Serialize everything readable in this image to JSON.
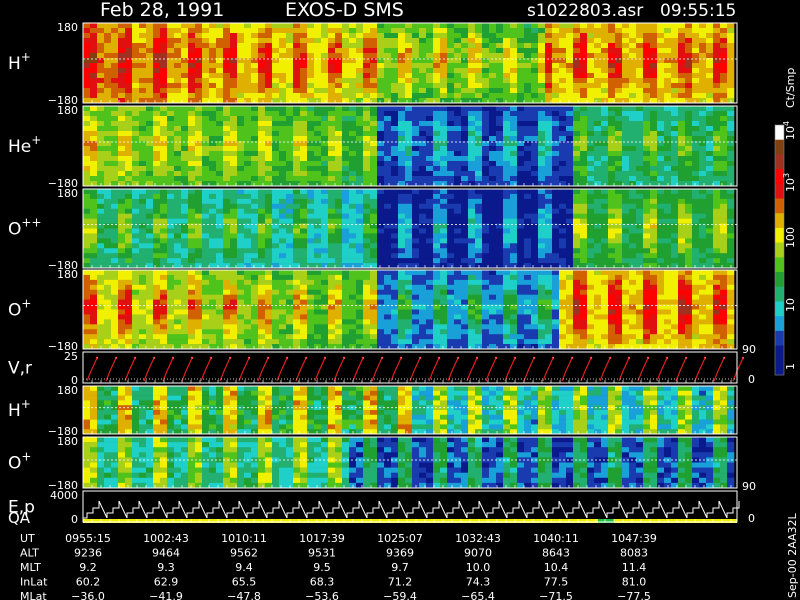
{
  "header": {
    "date": "Feb 28, 1991",
    "mission": "EXOS-D SMS",
    "file": "s1022803.asr",
    "time": "09:55:15"
  },
  "panels": [
    {
      "id": "h-plus-1",
      "label": "H",
      "sup": "+",
      "tick_top": "180",
      "tick_bottom": "−180"
    },
    {
      "id": "he-plus",
      "label": "He",
      "sup": "+",
      "tick_top": "180",
      "tick_bottom": "−180"
    },
    {
      "id": "o-plusplus",
      "label": "O",
      "sup": "++",
      "tick_top": "180",
      "tick_bottom": "−180"
    },
    {
      "id": "o-plus-1",
      "label": "O",
      "sup": "+",
      "tick_top": "180",
      "tick_bottom": "−180"
    },
    {
      "id": "vr",
      "label": "V,r",
      "sup": "",
      "tick_top": "25",
      "tick_bottom": "0"
    },
    {
      "id": "h-plus-2",
      "label": "H",
      "sup": "+",
      "tick_top": "180",
      "tick_bottom": "−180"
    },
    {
      "id": "o-plus-2",
      "label": "O",
      "sup": "+",
      "tick_top": "180",
      "tick_bottom": "−180"
    },
    {
      "id": "ep-qa",
      "label": "E,p",
      "label2": "QA",
      "sup": "",
      "tick_top": "4000",
      "tick_bottom": "0"
    }
  ],
  "right_axes": {
    "vr": {
      "top": "90",
      "bottom": "0"
    },
    "ep": {
      "top": "90",
      "bottom": "0"
    }
  },
  "colorbar": {
    "unit": "Ct/Smp",
    "labels": [
      {
        "text": "1",
        "sup": ""
      },
      {
        "text": "10",
        "sup": ""
      },
      {
        "text": "100",
        "sup": ""
      },
      {
        "text": "10",
        "sup": "3"
      },
      {
        "text": "10",
        "sup": "4"
      }
    ],
    "colors": [
      "#0a1a8c",
      "#0a1a8c",
      "#1a3bb0",
      "#19a0d8",
      "#1fd0c8",
      "#22b070",
      "#20a030",
      "#4fc21c",
      "#a8d018",
      "#f0f000",
      "#e0b000",
      "#d06000",
      "#e01010",
      "#ff0000",
      "#a03020",
      "#804010",
      "#ffffff"
    ]
  },
  "footer": {
    "rows": [
      {
        "label": "UT",
        "values": [
          "0955:15",
          "1002:43",
          "1010:11",
          "1017:39",
          "1025:07",
          "1032:43",
          "1040:11",
          "1047:39"
        ]
      },
      {
        "label": "ALT",
        "values": [
          "9236",
          "9464",
          "9562",
          "9531",
          "9369",
          "9070",
          "8643",
          "8083"
        ]
      },
      {
        "label": "MLT",
        "values": [
          "9.2",
          "9.3",
          "9.4",
          "9.5",
          "9.7",
          "10.0",
          "10.4",
          "11.4"
        ]
      },
      {
        "label": "InLat",
        "values": [
          "60.2",
          "62.9",
          "65.5",
          "68.3",
          "71.2",
          "74.3",
          "77.5",
          "81.0"
        ]
      },
      {
        "label": "MLat",
        "values": [
          "−36.0",
          "−41.9",
          "−47.8",
          "−53.6",
          "−59.4",
          "−65.4",
          "−71.5",
          "−77.5"
        ]
      }
    ],
    "stamp": "Sep-00 2AA32L"
  },
  "chart_data": {
    "type": "heatmap",
    "title": "Feb 28, 1991   EXOS-D SMS",
    "x": [
      "0955:15",
      "1002:43",
      "1010:11",
      "1017:39",
      "1025:07",
      "1032:43",
      "1040:11",
      "1047:39"
    ],
    "series": [
      {
        "name": "H+",
        "ylim": [
          -180,
          180
        ]
      },
      {
        "name": "He+",
        "ylim": [
          -180,
          180
        ]
      },
      {
        "name": "O++",
        "ylim": [
          -180,
          180
        ]
      },
      {
        "name": "O+",
        "ylim": [
          -180,
          180
        ]
      },
      {
        "name": "V,r",
        "ylim": [
          0,
          25
        ]
      },
      {
        "name": "H+",
        "ylim": [
          -180,
          180
        ]
      },
      {
        "name": "O+",
        "ylim": [
          -180,
          180
        ]
      },
      {
        "name": "E,p",
        "ylim": [
          0,
          4000
        ]
      }
    ],
    "colorbar_unit": "Ct/Smp",
    "colorbar_range": [
      1,
      10000
    ],
    "colorbar_scale": "log"
  }
}
